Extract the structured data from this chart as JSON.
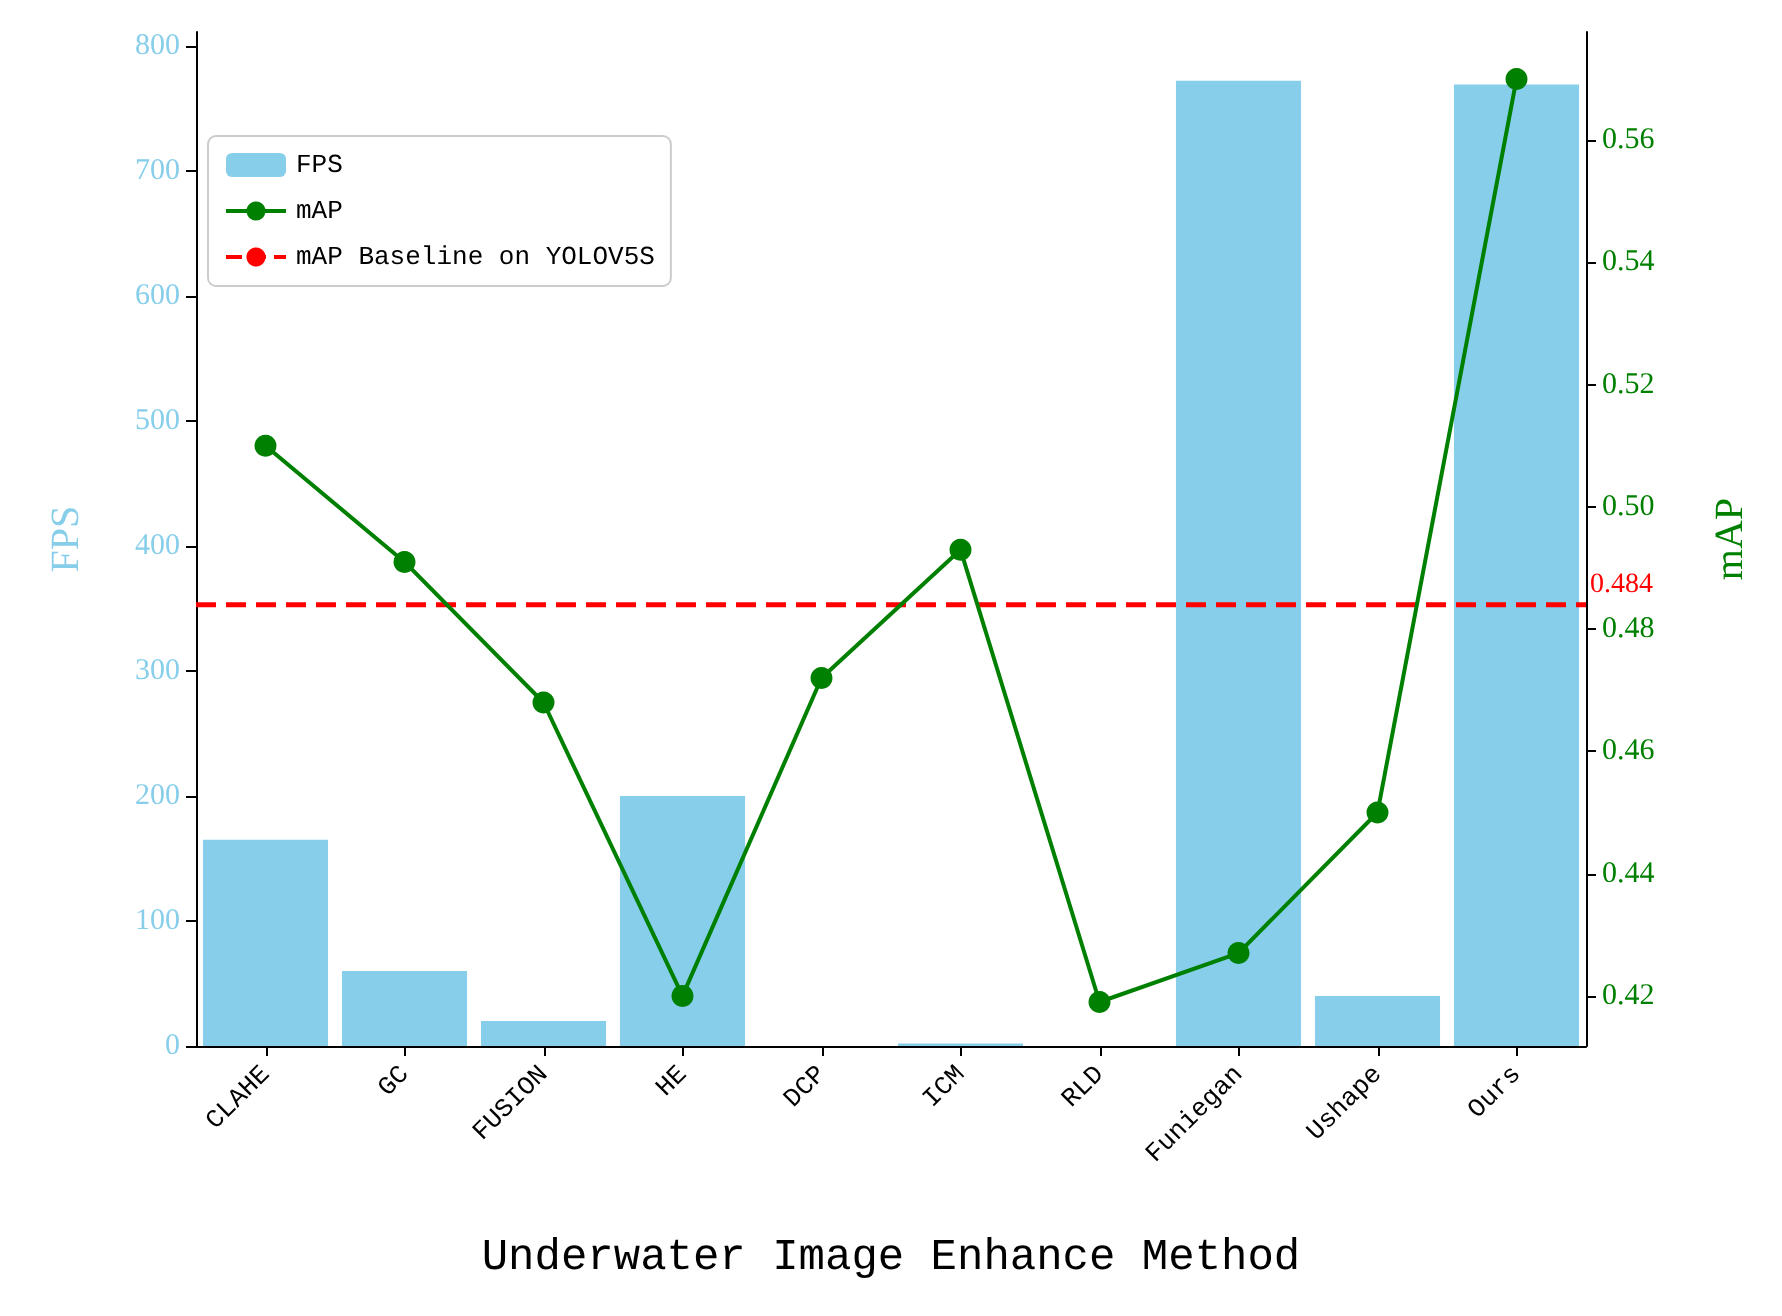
{
  "chart_data": {
    "type": "bar",
    "xlabel": "Underwater Image Enhance Method",
    "ylabel": "FPS",
    "y2label": "mAP",
    "categories": [
      "CLAHE",
      "GC",
      "FUSION",
      "HE",
      "DCP",
      "ICM",
      "RLD",
      "Funiegan",
      "Ushape",
      "Ours"
    ],
    "series": [
      {
        "name": "FPS",
        "color": "#87ceeb",
        "values": [
          165,
          60,
          20,
          200,
          0,
          2,
          0,
          772,
          40,
          769
        ]
      },
      {
        "name": "mAP",
        "type": "line",
        "axis": "y2",
        "color": "#008000",
        "values": [
          0.51,
          0.491,
          0.468,
          0.42,
          0.472,
          0.493,
          0.419,
          0.427,
          0.45,
          0.57
        ]
      }
    ],
    "ylim": [
      0,
      811
    ],
    "yticks": [
      0,
      100,
      200,
      300,
      400,
      500,
      600,
      700,
      800
    ],
    "y2lim": [
      0.4118,
      0.5777
    ],
    "y2ticks": [
      0.42,
      0.44,
      0.46,
      0.48,
      {
        "value": 0.5,
        "label": "0.50"
      },
      0.52,
      0.54,
      0.56
    ],
    "ref_lines": [
      {
        "axis": "y2",
        "value": 0.484,
        "label": "mAP Baseline on YOLOV5S",
        "color": "#ff0000",
        "line_style": "dashed"
      }
    ],
    "annotations": [
      "0.484"
    ],
    "marker": "circle",
    "grid": false,
    "legend": "top left"
  }
}
